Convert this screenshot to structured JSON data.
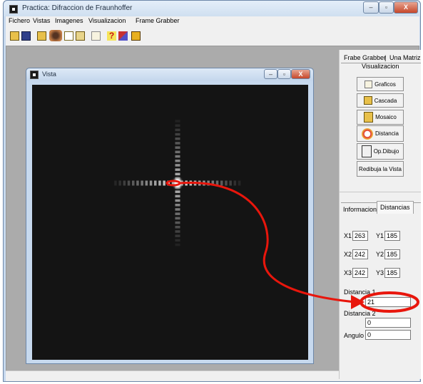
{
  "window": {
    "title": "Practica: Difraccion de Fraunhoffer"
  },
  "menu": [
    "Fichero",
    "Vistas",
    "Imagenes",
    "Visualizacion",
    "Frame Grabber"
  ],
  "toolbar_icons": [
    "open-folder-icon",
    "save-icon",
    "print-icon",
    "eye-icon",
    "copy-icon",
    "paste-icon",
    "chart-icon",
    "help-icon",
    "edit-icon",
    "exit-icon"
  ],
  "child": {
    "title": "Vista"
  },
  "panel": {
    "top_tabs": [
      "Frabe Grabber",
      "Una Matriz"
    ],
    "top_subtab": "Visualizacion",
    "buttons": [
      "Graficos",
      "Cascada",
      "Mosaico",
      "Distancia",
      "Op.Dibujo",
      "Redibuja la Vista"
    ],
    "bottom_tabs": [
      "Informacion",
      "Distancias"
    ],
    "coords": {
      "x1_label": "X1",
      "x1": "263",
      "y1_label": "Y1",
      "y1": "185",
      "x2_label": "X2",
      "x2": "242",
      "y2_label": "Y2",
      "y2": "185",
      "x3_label": "X3",
      "x3": "242",
      "y3_label": "Y3",
      "y3": "185"
    },
    "dist1_label": "Distancia 1",
    "dist1": "21",
    "dist2_label": "Distancia 2",
    "dist2": "0",
    "angle_label": "Angulo",
    "angle": "0"
  },
  "colors": {
    "annotation": "#e8160c",
    "canvas": "#141414",
    "window_frame": "#c7d9ee"
  }
}
